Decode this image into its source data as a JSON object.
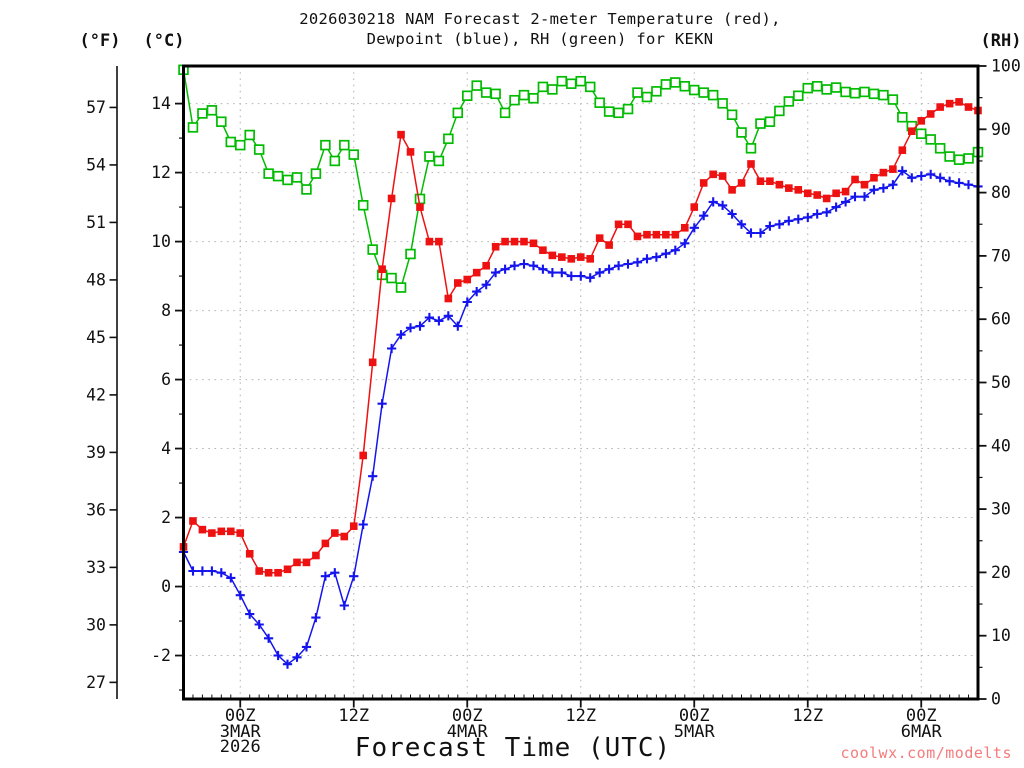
{
  "title": {
    "line1": "2026030218 NAM Forecast 2-meter Temperature (red),",
    "line2": "Dewpoint (blue), RH (green) for KEKN"
  },
  "axis_headers": {
    "fahrenheit": "(°F)",
    "celsius": "(°C)",
    "rh": "(RH)"
  },
  "x_axis_title": "Forecast Time (UTC)",
  "watermark": {
    "text": "coolwx.com/modelts",
    "color": "#f47c7c"
  },
  "chart_data": {
    "type": "line",
    "station": "KEKN",
    "model_run": "2026030218 NAM",
    "x_unit": "forecast hour",
    "x_range_hours": [
      0,
      84
    ],
    "xlabel": "Forecast Time (UTC)",
    "x_ticks": [
      {
        "hour": 6,
        "time": "00Z",
        "date": "3MAR",
        "year": "2026"
      },
      {
        "hour": 18,
        "time": "12Z"
      },
      {
        "hour": 30,
        "time": "00Z",
        "date": "4MAR"
      },
      {
        "hour": 42,
        "time": "12Z"
      },
      {
        "hour": 54,
        "time": "00Z",
        "date": "5MAR"
      },
      {
        "hour": 66,
        "time": "12Z"
      },
      {
        "hour": 78,
        "time": "00Z",
        "date": "6MAR"
      }
    ],
    "y_left_f": {
      "label": "(°F)",
      "ticks": [
        57,
        54,
        51,
        48,
        45,
        42,
        39,
        36,
        33,
        30,
        27
      ]
    },
    "y_left_c": {
      "label": "(°C)",
      "ticks": [
        14,
        12,
        10,
        8,
        6,
        4,
        2,
        0,
        -2
      ],
      "minor_ticks": [
        15,
        13,
        11,
        9,
        7,
        5,
        3,
        1,
        -1,
        -3
      ],
      "ylim": [
        -3.26,
        15.09
      ]
    },
    "y_right_rh": {
      "label": "(RH)",
      "ticks": [
        100,
        90,
        80,
        70,
        60,
        50,
        40,
        30,
        20,
        10,
        0
      ],
      "minor_ticks": [
        95,
        85,
        75,
        65,
        55,
        45,
        35,
        25,
        15,
        5
      ],
      "ylim": [
        0,
        100
      ]
    },
    "grid": {
      "style": "dotted",
      "color": "#b4b4b4",
      "horizontal_at_c": [
        14,
        12,
        10,
        8,
        6,
        4,
        2,
        0,
        -2
      ],
      "vertical_at_hours": [
        6,
        18,
        30,
        42,
        54,
        66,
        78
      ]
    },
    "series": [
      {
        "name": "2-meter Temperature",
        "unit": "°C",
        "y_axis": "celsius",
        "color": "#ee1111",
        "marker": "filled-square",
        "values": [
          1.15,
          1.9,
          1.65,
          1.55,
          1.6,
          1.6,
          1.55,
          0.95,
          0.45,
          0.4,
          0.4,
          0.5,
          0.7,
          0.7,
          0.9,
          1.25,
          1.55,
          1.45,
          1.75,
          3.8,
          6.5,
          9.2,
          11.25,
          13.1,
          12.6,
          11.0,
          10.0,
          10.0,
          8.35,
          8.8,
          8.9,
          9.1,
          9.3,
          9.85,
          10.0,
          10.0,
          10.0,
          9.95,
          9.75,
          9.6,
          9.55,
          9.5,
          9.55,
          9.5,
          10.1,
          9.9,
          10.5,
          10.5,
          10.15,
          10.2,
          10.2,
          10.2,
          10.2,
          10.4,
          11.0,
          11.7,
          11.95,
          11.9,
          11.5,
          11.7,
          12.25,
          11.75,
          11.75,
          11.65,
          11.55,
          11.5,
          11.4,
          11.35,
          11.25,
          11.4,
          11.45,
          11.8,
          11.65,
          11.85,
          12.0,
          12.1,
          12.65,
          13.2,
          13.5,
          13.7,
          13.9,
          14.0,
          14.05,
          13.9,
          13.8
        ]
      },
      {
        "name": "Dewpoint",
        "unit": "°C",
        "y_axis": "celsius",
        "color": "#1414ee",
        "marker": "plus",
        "values": [
          1.0,
          0.45,
          0.45,
          0.45,
          0.4,
          0.25,
          -0.25,
          -0.8,
          -1.1,
          -1.5,
          -2.0,
          -2.25,
          -2.05,
          -1.75,
          -0.9,
          0.3,
          0.4,
          -0.55,
          0.3,
          1.8,
          3.2,
          5.3,
          6.9,
          7.3,
          7.5,
          7.55,
          7.8,
          7.7,
          7.85,
          7.55,
          8.25,
          8.55,
          8.75,
          9.1,
          9.2,
          9.3,
          9.35,
          9.3,
          9.2,
          9.1,
          9.1,
          9.0,
          9.0,
          8.95,
          9.1,
          9.2,
          9.3,
          9.35,
          9.4,
          9.5,
          9.55,
          9.65,
          9.75,
          9.95,
          10.4,
          10.75,
          11.15,
          11.05,
          10.8,
          10.5,
          10.25,
          10.25,
          10.45,
          10.5,
          10.6,
          10.65,
          10.7,
          10.8,
          10.85,
          11.0,
          11.15,
          11.3,
          11.3,
          11.5,
          11.55,
          11.65,
          12.05,
          11.85,
          11.9,
          11.95,
          11.85,
          11.75,
          11.7,
          11.65,
          11.6
        ]
      },
      {
        "name": "RH",
        "unit": "%",
        "y_axis": "rh",
        "color": "#00bb00",
        "marker": "open-square",
        "values": [
          99.4,
          90.3,
          92.5,
          93.0,
          91.2,
          88.0,
          87.5,
          89.1,
          86.8,
          83.0,
          82.6,
          82.0,
          82.4,
          80.5,
          83.0,
          87.5,
          85.0,
          87.5,
          86.0,
          78.0,
          71.0,
          67.0,
          66.5,
          65.0,
          70.3,
          79.0,
          85.7,
          85.0,
          88.5,
          92.6,
          95.3,
          96.9,
          95.8,
          95.6,
          92.6,
          94.6,
          95.4,
          94.9,
          96.7,
          96.3,
          97.6,
          97.2,
          97.6,
          96.7,
          94.2,
          92.8,
          92.6,
          93.2,
          95.8,
          95.1,
          96.0,
          97.1,
          97.4,
          96.8,
          96.2,
          95.8,
          95.4,
          94.1,
          92.3,
          89.5,
          87.0,
          90.9,
          91.2,
          92.9,
          94.4,
          95.3,
          96.5,
          96.8,
          96.3,
          96.6,
          95.9,
          95.7,
          95.9,
          95.6,
          95.4,
          94.7,
          91.9,
          90.5,
          89.3,
          88.4,
          87.0,
          85.7,
          85.2,
          85.4,
          86.4
        ]
      }
    ]
  }
}
